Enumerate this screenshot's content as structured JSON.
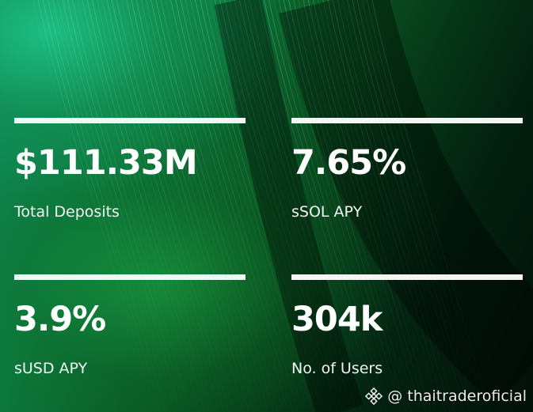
{
  "stats": [
    {
      "value": "$111.33M",
      "label": "Total Deposits"
    },
    {
      "value": "7.65%",
      "label": "sSOL APY"
    },
    {
      "value": "3.9%",
      "label": "sUSD APY"
    },
    {
      "value": "304k",
      "label": "No. of Users"
    }
  ],
  "watermark": {
    "icon": "binance-logo-icon",
    "handle": "@ thaitraderoficial"
  },
  "colors": {
    "accent_green": "#0f8a5e",
    "dark_bg": "#021008",
    "bar": "#f4f6f3",
    "text": "#ffffff"
  }
}
